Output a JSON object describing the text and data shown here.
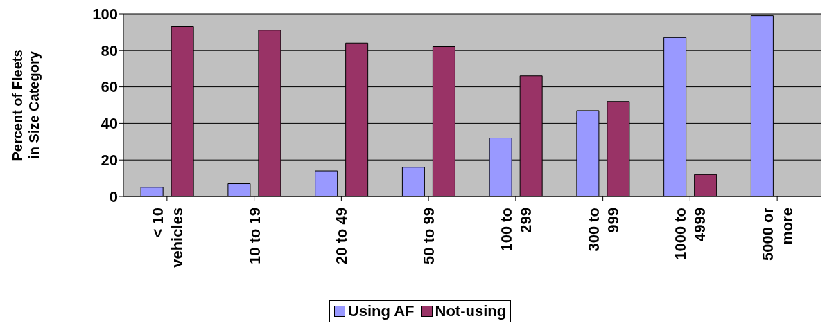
{
  "chart_data": {
    "type": "bar",
    "ylabel": "Percent of Fleets\nin Size Category",
    "categories": [
      "< 10\nvehicles",
      "10 to 19",
      "20 to 49",
      "50 to 99",
      "100 to\n299",
      "300 to\n999",
      "1000 to\n4999",
      "5000 or\nmore"
    ],
    "series": [
      {
        "name": "Using AF",
        "color": "#9999ff",
        "values": [
          5,
          7,
          14,
          16,
          32,
          47,
          87,
          99
        ]
      },
      {
        "name": "Not-using",
        "color": "#993366",
        "values": [
          93,
          91,
          84,
          82,
          66,
          52,
          12,
          0
        ]
      }
    ],
    "ylim": [
      0,
      100
    ],
    "yticks": [
      0,
      20,
      40,
      60,
      80,
      100
    ],
    "grid": "y",
    "legend": "bottom"
  }
}
